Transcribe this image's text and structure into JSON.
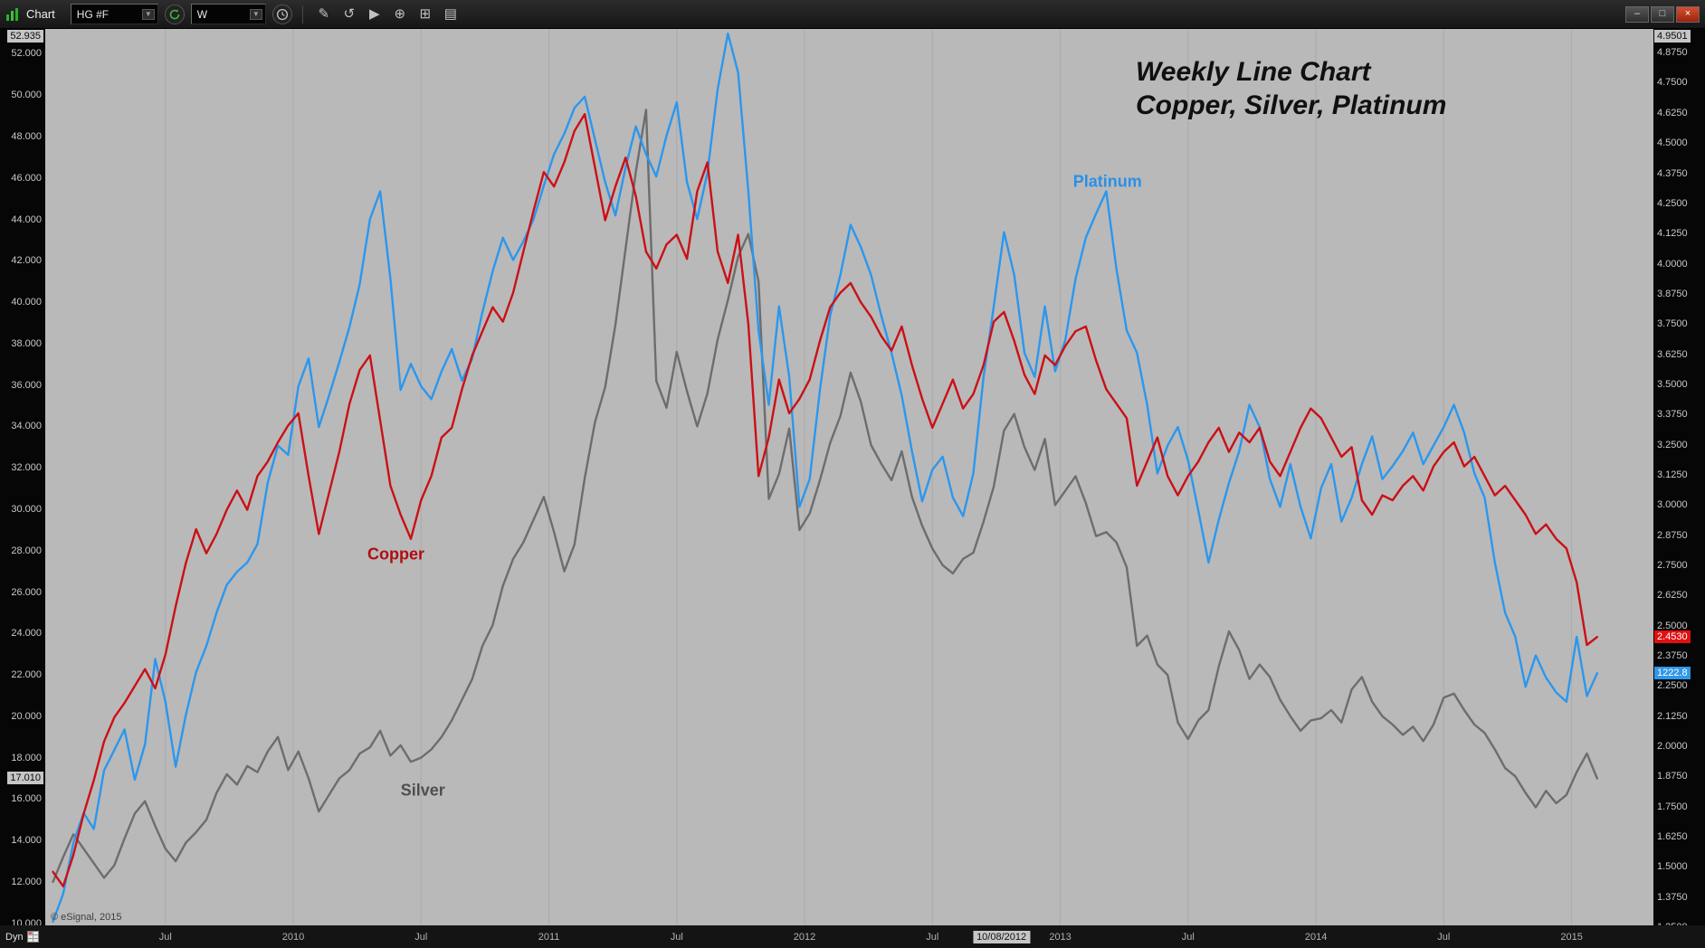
{
  "window": {
    "title": "Chart",
    "minimize": "–",
    "maximize": "□",
    "close": "×"
  },
  "toolbar": {
    "symbol": "HG #F",
    "interval": "W",
    "chevron": "▼",
    "icons": [
      {
        "name": "pencil-icon",
        "glyph": "✎"
      },
      {
        "name": "undo-icon",
        "glyph": "↺"
      },
      {
        "name": "play-icon",
        "glyph": "▶"
      },
      {
        "name": "zoom-icon",
        "glyph": "⊕"
      },
      {
        "name": "grid-tool-icon",
        "glyph": "⊞"
      },
      {
        "name": "panel-icon",
        "glyph": "▤"
      }
    ]
  },
  "footer": {
    "dyn_label": "Dyn",
    "copyright": "© eSignal, 2015"
  },
  "chart_data": {
    "type": "line",
    "title": "Weekly Line Chart",
    "subtitle": "Copper, Silver, Platinum",
    "x_range": [
      2009.03,
      2015.32
    ],
    "x_start": 2009.06,
    "x_step": 0.04,
    "x_ticks": [
      {
        "label": "Jul",
        "x": 2009.5
      },
      {
        "label": "2010",
        "x": 2010.0
      },
      {
        "label": "Jul",
        "x": 2010.5
      },
      {
        "label": "2011",
        "x": 2011.0
      },
      {
        "label": "Jul",
        "x": 2011.5
      },
      {
        "label": "2012",
        "x": 2012.0
      },
      {
        "label": "Jul",
        "x": 2012.5
      },
      {
        "label": "2013",
        "x": 2013.0
      },
      {
        "label": "Jul",
        "x": 2013.5
      },
      {
        "label": "2014",
        "x": 2014.0
      },
      {
        "label": "Jul",
        "x": 2014.5
      },
      {
        "label": "2015",
        "x": 2015.0
      }
    ],
    "selected_date": {
      "label": "10/08/2012",
      "x": 2012.77
    },
    "left_axis": {
      "series": "Silver",
      "domain": [
        9.9,
        53.2
      ],
      "decimals": 3,
      "ticks": [
        52,
        50,
        48,
        46,
        44,
        42,
        40,
        38,
        36,
        34,
        32,
        30,
        28,
        26,
        24,
        22,
        20,
        18,
        16,
        14,
        12,
        10
      ],
      "special": [
        {
          "label": "52.935",
          "value": 52.935,
          "style": "gray"
        },
        {
          "label": "17.010",
          "value": 17.01,
          "style": "gray"
        }
      ]
    },
    "right_axis": {
      "series": "Copper",
      "domain": [
        1.258,
        4.973
      ],
      "decimals": 4,
      "ticks": [
        4.875,
        4.75,
        4.625,
        4.5,
        4.375,
        4.25,
        4.125,
        4.0,
        3.875,
        3.75,
        3.625,
        3.5,
        3.375,
        3.25,
        3.125,
        3.0,
        2.875,
        2.75,
        2.625,
        2.5,
        2.375,
        2.25,
        2.125,
        2.0,
        1.875,
        1.75,
        1.625,
        1.5,
        1.375,
        1.25
      ],
      "special": [
        {
          "label": "4.9501",
          "value": 4.9501,
          "scale": "right",
          "style": "gray"
        },
        {
          "label": "2.4530",
          "value": 2.453,
          "scale": "right",
          "style": "red"
        },
        {
          "label": "1222.8",
          "value": 1222.8,
          "scale": "platinum",
          "style": "blue"
        }
      ]
    },
    "labels": [
      {
        "text": "Platinum",
        "color": "#2a90e8",
        "x": 2013.05,
        "y": 45.8
      },
      {
        "text": "Copper",
        "color": "#b00d12",
        "x": 2010.29,
        "y": 27.8
      },
      {
        "text": "Silver",
        "color": "#4f4f4f",
        "x": 2010.42,
        "y": 16.4
      }
    ],
    "series": [
      {
        "name": "Silver",
        "color": "#6d6d6d",
        "scale_domain": [
          9.9,
          53.2
        ],
        "last_value": "17.010",
        "values": [
          12.0,
          13.2,
          14.3,
          13.6,
          12.9,
          12.2,
          12.8,
          14.1,
          15.3,
          15.9,
          14.7,
          13.6,
          13.0,
          13.9,
          14.4,
          15.0,
          16.3,
          17.2,
          16.7,
          17.6,
          17.3,
          18.3,
          19.0,
          17.4,
          18.3,
          17.0,
          15.4,
          16.2,
          17.0,
          17.4,
          18.2,
          18.5,
          19.3,
          18.1,
          18.6,
          17.8,
          18.0,
          18.4,
          19.0,
          19.8,
          20.8,
          21.8,
          23.4,
          24.4,
          26.3,
          27.6,
          28.4,
          29.5,
          30.6,
          28.9,
          27.0,
          28.3,
          31.5,
          34.2,
          35.9,
          38.9,
          42.6,
          46.3,
          49.3,
          36.2,
          34.9,
          37.6,
          35.7,
          34.0,
          35.6,
          38.2,
          40.1,
          42.2,
          43.3,
          41.0,
          30.5,
          31.7,
          33.9,
          29.0,
          29.8,
          31.4,
          33.2,
          34.5,
          36.6,
          35.2,
          33.1,
          32.2,
          31.4,
          32.8,
          30.6,
          29.2,
          28.1,
          27.3,
          26.9,
          27.6,
          27.9,
          29.4,
          31.1,
          33.8,
          34.6,
          33.0,
          31.9,
          33.4,
          30.2,
          30.9,
          31.6,
          30.3,
          28.7,
          28.9,
          28.4,
          27.2,
          23.4,
          23.9,
          22.5,
          22.0,
          19.7,
          18.9,
          19.8,
          20.3,
          22.4,
          24.1,
          23.2,
          21.8,
          22.5,
          21.9,
          20.8,
          20.0,
          19.3,
          19.8,
          19.9,
          20.3,
          19.7,
          21.3,
          21.9,
          20.7,
          20.0,
          19.6,
          19.1,
          19.5,
          18.8,
          19.6,
          20.9,
          21.1,
          20.3,
          19.6,
          19.2,
          18.4,
          17.5,
          17.1,
          16.3,
          15.6,
          16.4,
          15.8,
          16.2,
          17.3,
          18.2,
          17.0
        ]
      },
      {
        "name": "Platinum",
        "color": "#2b97ee",
        "scale_domain": [
          951,
          1917
        ],
        "last_value": "1222.8",
        "values": [
          955,
          985,
          1040,
          1072,
          1055,
          1118,
          1140,
          1162,
          1108,
          1146,
          1238,
          1192,
          1122,
          1178,
          1224,
          1252,
          1288,
          1318,
          1332,
          1342,
          1362,
          1428,
          1468,
          1458,
          1532,
          1562,
          1488,
          1522,
          1558,
          1596,
          1642,
          1712,
          1742,
          1648,
          1528,
          1556,
          1532,
          1518,
          1548,
          1572,
          1538,
          1562,
          1612,
          1656,
          1692,
          1668,
          1688,
          1712,
          1748,
          1782,
          1804,
          1832,
          1844,
          1798,
          1752,
          1716,
          1768,
          1812,
          1782,
          1758,
          1802,
          1838,
          1752,
          1712,
          1762,
          1852,
          1912,
          1870,
          1742,
          1592,
          1512,
          1618,
          1542,
          1402,
          1432,
          1528,
          1608,
          1652,
          1706,
          1682,
          1652,
          1608,
          1568,
          1522,
          1462,
          1408,
          1442,
          1456,
          1412,
          1392,
          1438,
          1542,
          1618,
          1698,
          1652,
          1568,
          1542,
          1618,
          1548,
          1582,
          1648,
          1692,
          1718,
          1742,
          1658,
          1592,
          1568,
          1512,
          1438,
          1468,
          1488,
          1452,
          1398,
          1342,
          1388,
          1428,
          1462,
          1512,
          1488,
          1432,
          1402,
          1448,
          1402,
          1368,
          1422,
          1448,
          1386,
          1412,
          1448,
          1478,
          1432,
          1446,
          1462,
          1482,
          1448,
          1468,
          1488,
          1512,
          1482,
          1438,
          1412,
          1342,
          1288,
          1262,
          1208,
          1242,
          1218,
          1202,
          1192,
          1262,
          1198,
          1222.8
        ]
      },
      {
        "name": "Copper",
        "color": "#cb1016",
        "scale_domain": [
          1.258,
          4.973
        ],
        "last_value": "2.4530",
        "values": [
          1.48,
          1.42,
          1.55,
          1.72,
          1.86,
          2.02,
          2.12,
          2.18,
          2.25,
          2.32,
          2.24,
          2.38,
          2.58,
          2.76,
          2.9,
          2.8,
          2.88,
          2.98,
          3.06,
          2.98,
          3.12,
          3.18,
          3.26,
          3.33,
          3.38,
          3.12,
          2.88,
          3.05,
          3.22,
          3.42,
          3.56,
          3.62,
          3.35,
          3.08,
          2.96,
          2.86,
          3.02,
          3.12,
          3.28,
          3.32,
          3.48,
          3.62,
          3.72,
          3.82,
          3.76,
          3.88,
          4.05,
          4.22,
          4.38,
          4.32,
          4.42,
          4.55,
          4.62,
          4.4,
          4.18,
          4.32,
          4.44,
          4.28,
          4.05,
          3.98,
          4.08,
          4.12,
          4.02,
          4.3,
          4.42,
          4.05,
          3.92,
          4.12,
          3.75,
          3.12,
          3.28,
          3.52,
          3.38,
          3.44,
          3.52,
          3.68,
          3.82,
          3.88,
          3.92,
          3.84,
          3.78,
          3.7,
          3.64,
          3.74,
          3.58,
          3.44,
          3.32,
          3.42,
          3.52,
          3.4,
          3.46,
          3.58,
          3.76,
          3.8,
          3.68,
          3.54,
          3.46,
          3.62,
          3.58,
          3.66,
          3.72,
          3.74,
          3.6,
          3.48,
          3.42,
          3.36,
          3.08,
          3.18,
          3.28,
          3.12,
          3.04,
          3.12,
          3.18,
          3.26,
          3.32,
          3.22,
          3.3,
          3.26,
          3.32,
          3.18,
          3.12,
          3.22,
          3.32,
          3.4,
          3.36,
          3.28,
          3.2,
          3.24,
          3.02,
          2.96,
          3.04,
          3.02,
          3.08,
          3.12,
          3.06,
          3.16,
          3.22,
          3.26,
          3.16,
          3.2,
          3.12,
          3.04,
          3.08,
          3.02,
          2.96,
          2.88,
          2.92,
          2.86,
          2.82,
          2.68,
          2.42,
          2.453
        ]
      }
    ]
  }
}
